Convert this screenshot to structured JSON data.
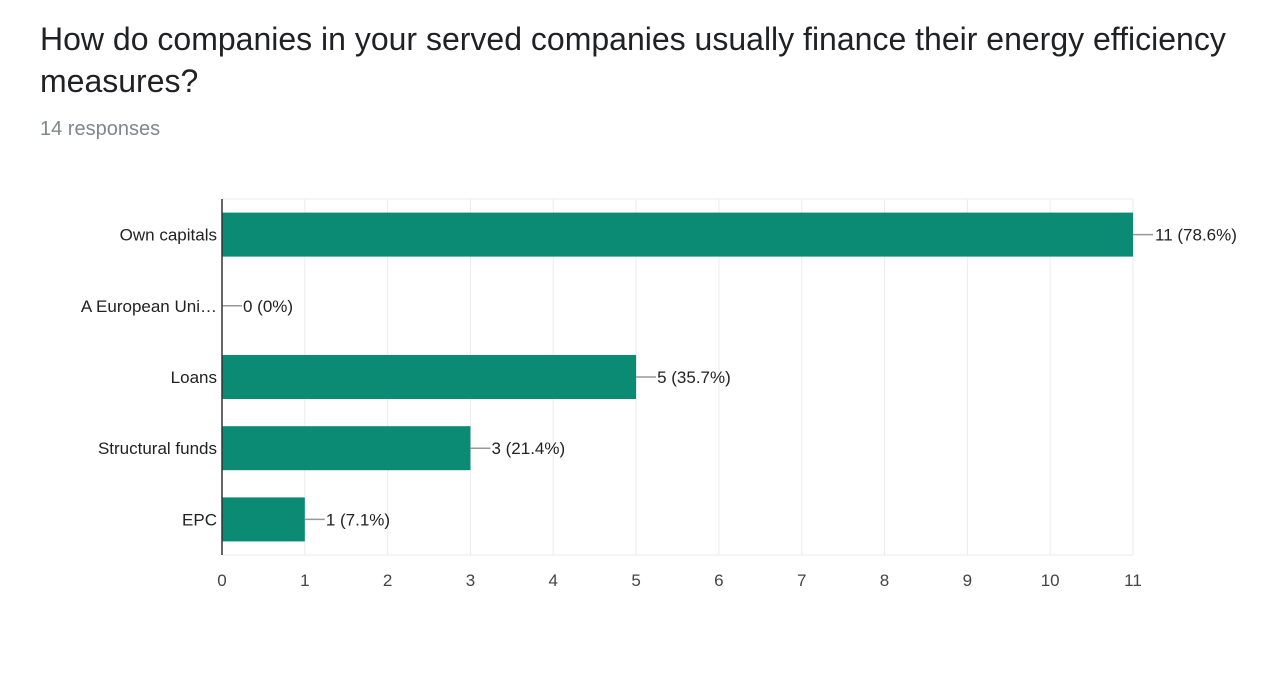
{
  "header": {
    "title": "How do companies in your served companies usually finance their energy efficiency measures?",
    "responses": "14 responses"
  },
  "colors": {
    "bar": "#0b8a74",
    "grid": "#ebebeb",
    "axis": "#333333",
    "text": "#222222"
  },
  "chart_data": {
    "type": "bar",
    "orientation": "horizontal",
    "title": "How do companies in your served companies usually finance their energy efficiency measures?",
    "categories": [
      "Own capitals",
      "A European Uni…",
      "Loans",
      "Structural funds",
      "EPC"
    ],
    "values": [
      11,
      0,
      5,
      3,
      1
    ],
    "data_labels": [
      "11 (78.6%)",
      "0 (0%)",
      "5 (35.7%)",
      "3 (21.4%)",
      "1 (7.1%)"
    ],
    "xticks": [
      "0",
      "1",
      "2",
      "3",
      "4",
      "5",
      "6",
      "7",
      "8",
      "9",
      "10",
      "11"
    ],
    "xlim": [
      0,
      11
    ],
    "xlabel": "",
    "ylabel": "",
    "grid": true
  }
}
